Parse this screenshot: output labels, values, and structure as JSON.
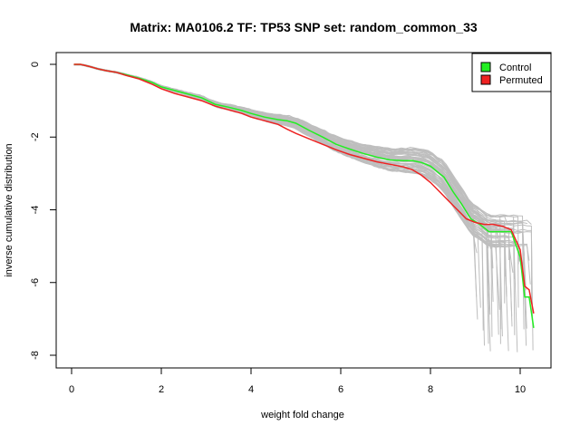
{
  "chart_data": {
    "type": "line",
    "title": "Matrix: MA0106.2 TF: TP53 SNP set: random_common_33",
    "xlabel": "weight fold change",
    "ylabel": "inverse cumulative distribution",
    "xlim": [
      0,
      10.3
    ],
    "ylim": [
      -8,
      0
    ],
    "x_ticks": [
      "0",
      "2",
      "4",
      "6",
      "8",
      "10"
    ],
    "y_ticks": [
      "0",
      "-2",
      "-4",
      "-6",
      "-8"
    ],
    "grid": false,
    "legend_position": "top-right",
    "legend": [
      {
        "label": "Control",
        "color": "#22ee22"
      },
      {
        "label": "Permuted",
        "color": "#ee2222"
      }
    ],
    "background_series_color": "#bebebe",
    "series": [
      {
        "name": "Control",
        "color": "#22ee22",
        "x": [
          0.05,
          0.2,
          0.4,
          0.6,
          0.8,
          1.0,
          1.2,
          1.5,
          1.8,
          2.0,
          2.3,
          2.6,
          2.9,
          3.2,
          3.5,
          3.8,
          4.0,
          4.3,
          4.6,
          4.8,
          5.0,
          5.3,
          5.6,
          5.9,
          6.2,
          6.5,
          6.8,
          7.1,
          7.4,
          7.6,
          7.8,
          8.0,
          8.2,
          8.3,
          8.5,
          8.7,
          8.9,
          9.1,
          9.3,
          9.6,
          9.8,
          10.0,
          10.1,
          10.2,
          10.3
        ],
        "y": [
          0.0,
          0.0,
          -0.06,
          -0.13,
          -0.18,
          -0.22,
          -0.28,
          -0.38,
          -0.5,
          -0.62,
          -0.72,
          -0.82,
          -0.92,
          -1.1,
          -1.18,
          -1.27,
          -1.35,
          -1.45,
          -1.52,
          -1.55,
          -1.62,
          -1.82,
          -2.0,
          -2.2,
          -2.33,
          -2.45,
          -2.55,
          -2.63,
          -2.65,
          -2.65,
          -2.7,
          -2.8,
          -3.0,
          -3.1,
          -3.5,
          -3.85,
          -4.25,
          -4.4,
          -4.6,
          -4.6,
          -4.6,
          -5.3,
          -6.4,
          -6.4,
          -7.25
        ]
      },
      {
        "name": "Permuted",
        "color": "#ee2222",
        "x": [
          0.05,
          0.2,
          0.4,
          0.6,
          0.8,
          1.0,
          1.2,
          1.5,
          1.8,
          2.0,
          2.3,
          2.6,
          2.9,
          3.2,
          3.5,
          3.8,
          4.0,
          4.3,
          4.6,
          4.8,
          5.0,
          5.3,
          5.6,
          5.9,
          6.2,
          6.5,
          6.8,
          7.1,
          7.4,
          7.6,
          7.8,
          8.0,
          8.2,
          8.4,
          8.6,
          8.8,
          9.0,
          9.2,
          9.4,
          9.6,
          9.8,
          10.0,
          10.1,
          10.2,
          10.3
        ],
        "y": [
          0.0,
          0.0,
          -0.06,
          -0.13,
          -0.18,
          -0.22,
          -0.3,
          -0.4,
          -0.55,
          -0.67,
          -0.8,
          -0.9,
          -1.0,
          -1.15,
          -1.25,
          -1.35,
          -1.45,
          -1.55,
          -1.65,
          -1.78,
          -1.9,
          -2.05,
          -2.2,
          -2.35,
          -2.48,
          -2.58,
          -2.68,
          -2.75,
          -2.82,
          -2.9,
          -3.05,
          -3.25,
          -3.5,
          -3.75,
          -4.0,
          -4.25,
          -4.35,
          -4.4,
          -4.4,
          -4.45,
          -4.55,
          -5.1,
          -6.1,
          -6.2,
          -6.85
        ]
      }
    ]
  }
}
